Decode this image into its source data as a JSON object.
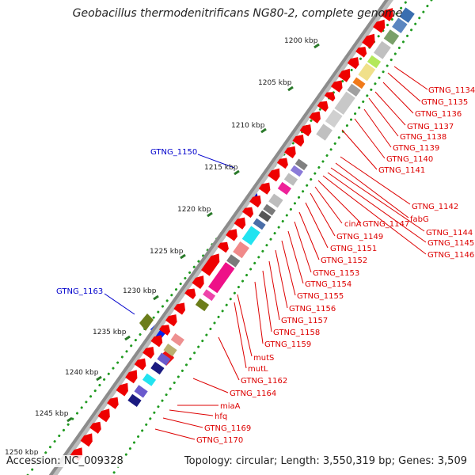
{
  "title": "Geobacillus thermodenitrificans NG80-2, complete genome",
  "footer": {
    "accession": "Accession: NC_009328",
    "summary": "Topology: circular; Length: 3,550,319 bp; Genes: 3,509"
  },
  "colors": {
    "backbone": "#8c8c8c",
    "forward_arrow": "#ee0000",
    "forward_label": "#0000cc",
    "reverse_label": "#dd0000",
    "tick": "#2a7a2a",
    "dot": "#1f9a1f"
  },
  "kbp_labels": [
    "1200 kbp",
    "1205 kbp",
    "1210 kbp",
    "1215 kbp",
    "1220 kbp",
    "1225 kbp",
    "1230 kbp",
    "1235 kbp",
    "1240 kbp",
    "1245 kbp",
    "1250 kbp"
  ],
  "forward_gene_labels": [
    "GTNG_1150",
    "GTNG_1163"
  ],
  "reverse_gene_labels": [
    "GTNG_1134",
    "GTNG_1135",
    "GTNG_1136",
    "GTNG_1137",
    "GTNG_1138",
    "GTNG_1139",
    "GTNG_1140",
    "GTNG_1141",
    "GTNG_1142",
    "fabG",
    "GTNG_1144",
    "GTNG_1145",
    "GTNG_1146",
    "cinA",
    "GTNG_1147",
    "GTNG_1149",
    "GTNG_1151",
    "GTNG_1152",
    "GTNG_1153",
    "GTNG_1154",
    "GTNG_1155",
    "GTNG_1156",
    "GTNG_1157",
    "GTNG_1158",
    "GTNG_1159",
    "mutS",
    "mutL",
    "GTNG_1162",
    "GTNG_1164",
    "miaA",
    "hfq",
    "GTNG_1169",
    "GTNG_1170"
  ]
}
